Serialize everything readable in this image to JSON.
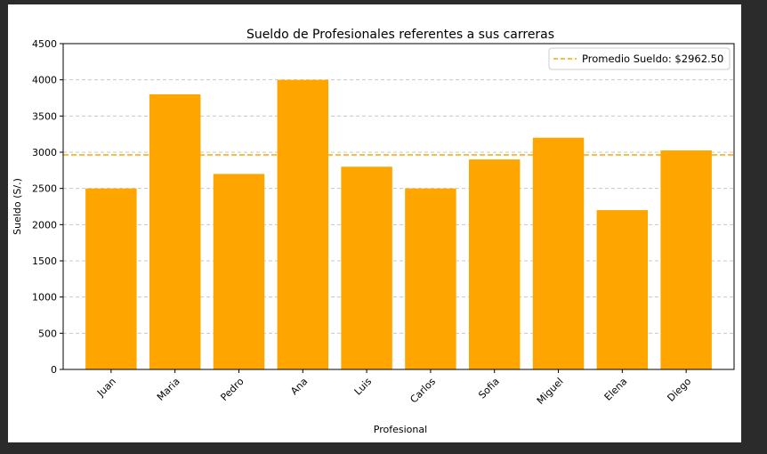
{
  "chart_data": {
    "type": "bar",
    "title": "Sueldo de Profesionales referentes a sus carreras",
    "xlabel": "Profesional",
    "ylabel": "Sueldo (S/.)",
    "categories": [
      "Juan",
      "Maria",
      "Pedro",
      "Ana",
      "Luis",
      "Carlos",
      "Sofia",
      "Miguel",
      "Elena",
      "Diego"
    ],
    "values": [
      2500,
      3800,
      2700,
      4000,
      2800,
      2500,
      2900,
      3200,
      2200,
      3025
    ],
    "ylim": [
      0,
      4500
    ],
    "yticks": [
      "0",
      "500",
      "1000",
      "1500",
      "2000",
      "2500",
      "3000",
      "3500",
      "4000",
      "4500"
    ],
    "grid": "horizontal dashed",
    "bar_color": "#ffa500",
    "reference_line": {
      "value": 2962.5,
      "label": "Promedio Sueldo: $2962.50",
      "color": "#ffa500",
      "style": "dashed"
    },
    "legend": "top-right"
  }
}
